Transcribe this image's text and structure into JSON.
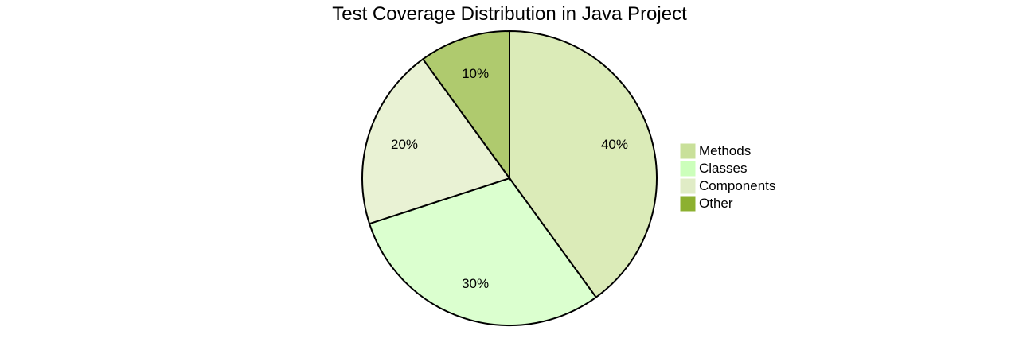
{
  "chart_data": {
    "type": "pie",
    "title": "Test Coverage Distribution in Java Project",
    "categories": [
      "Methods",
      "Classes",
      "Components",
      "Other"
    ],
    "values": [
      40,
      30,
      20,
      10
    ],
    "labels": [
      "40%",
      "30%",
      "20%",
      "10%"
    ],
    "colors": [
      "#c9e09a",
      "#ccffbb",
      "#e0ecc6",
      "#8cb030"
    ],
    "slice_fill_colors": [
      "#dbebb8",
      "#dbffcf",
      "#e9f2d4",
      "#afca6e"
    ],
    "start_angle": "top, clockwise",
    "legend_position": "right"
  },
  "legend": {
    "items": [
      {
        "label": "Methods",
        "color": "#c9e09a"
      },
      {
        "label": "Classes",
        "color": "#ccffbb"
      },
      {
        "label": "Components",
        "color": "#e0ecc6"
      },
      {
        "label": "Other",
        "color": "#8cb030"
      }
    ]
  }
}
